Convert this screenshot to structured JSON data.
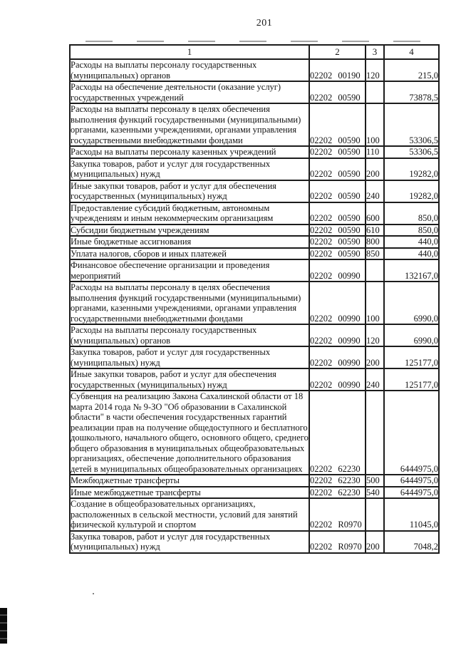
{
  "page": {
    "number": "201"
  },
  "table": {
    "headers": [
      "1",
      "2",
      "3",
      "4"
    ],
    "rows": [
      {
        "label": "Расходы на выплаты персоналу государственных (муниципальных) органов",
        "code": "02202 00190",
        "vr": "120",
        "amount": "215,0"
      },
      {
        "label": "Расходы на обеспечение деятельности (оказание услуг) государственных учреждений",
        "code": "02202 00590",
        "vr": "",
        "amount": "73878,5"
      },
      {
        "label": "Расходы на выплаты персоналу в целях обеспечения выполнения функций государственными (муниципальными) органами, казенными учреждениями, органами управления государственными внебюджетными фондами",
        "code": "02202 00590",
        "vr": "100",
        "amount": "53306,5"
      },
      {
        "label": "Расходы на выплаты персоналу казенных учреждений",
        "code": "02202 00590",
        "vr": "110",
        "amount": "53306,5"
      },
      {
        "label": "Закупка товаров, работ и услуг для государственных (муниципальных) нужд",
        "code": "02202 00590",
        "vr": "200",
        "amount": "19282,0"
      },
      {
        "label": "Иные закупки товаров, работ и услуг для обеспечения государственных (муниципальных) нужд",
        "code": "02202 00590",
        "vr": "240",
        "amount": "19282,0"
      },
      {
        "label": "Предоставление субсидий бюджетным, автономным учреждениям и иным некоммерческим организациям",
        "code": "02202 00590",
        "vr": "600",
        "amount": "850,0"
      },
      {
        "label": "Субсидии бюджетным учреждениям",
        "code": "02202 00590",
        "vr": "610",
        "amount": "850,0"
      },
      {
        "label": "Иные бюджетные ассигнования",
        "code": "02202 00590",
        "vr": "800",
        "amount": "440,0"
      },
      {
        "label": "Уплата налогов, сборов и иных платежей",
        "code": "02202 00590",
        "vr": "850",
        "amount": "440,0"
      },
      {
        "label": "Финансовое обеспечение организации и проведения мероприятий",
        "code": "02202 00990",
        "vr": "",
        "amount": "132167,0"
      },
      {
        "label": "Расходы на выплаты персоналу в целях обеспечения выполнения функций государственными (муниципальными) органами, казенными учреждениями, органами управления государственными внебюджетными фондами",
        "code": "02202 00990",
        "vr": "100",
        "amount": "6990,0"
      },
      {
        "label": "Расходы на выплаты персоналу государственных (муниципальных) органов",
        "code": "02202 00990",
        "vr": "120",
        "amount": "6990,0"
      },
      {
        "label": "Закупка товаров, работ и услуг для государственных (муниципальных) нужд",
        "code": "02202 00990",
        "vr": "200",
        "amount": "125177,0"
      },
      {
        "label": "Иные закупки товаров, работ и услуг для обеспечения государственных (муниципальных) нужд",
        "code": "02202 00990",
        "vr": "240",
        "amount": "125177,0"
      },
      {
        "label": "Субвенция на реализацию Закона Сахалинской области от 18 марта 2014 года № 9-ЗО \"Об образовании в Сахалинской области\" в части обеспечения государственных гарантий реализации прав на получение общедоступного и бесплатного дошкольного, начального общего, основного общего, среднего общего образования в муниципальных общеобразовательных организациях, обеспечение дополнительного образования детей в муниципальных общеобразовательных организациях",
        "code": "02202 62230",
        "vr": "",
        "amount": "6444975,0"
      },
      {
        "label": "Межбюджетные трансферты",
        "code": "02202 62230",
        "vr": "500",
        "amount": "6444975,0"
      },
      {
        "label": "Иные межбюджетные трансферты",
        "code": "02202 62230",
        "vr": "540",
        "amount": "6444975,0"
      },
      {
        "label": "Создание в общеобразовательных организациях, расположенных в сельской местности, условий для занятий физической культурой и спортом",
        "code": "02202 R0970",
        "vr": "",
        "amount": "11045,0"
      },
      {
        "label": "Закупка товаров, работ и услуг для государственных (муниципальных) нужд",
        "code": "02202 R0970",
        "vr": "200",
        "amount": "7048,2"
      }
    ]
  }
}
